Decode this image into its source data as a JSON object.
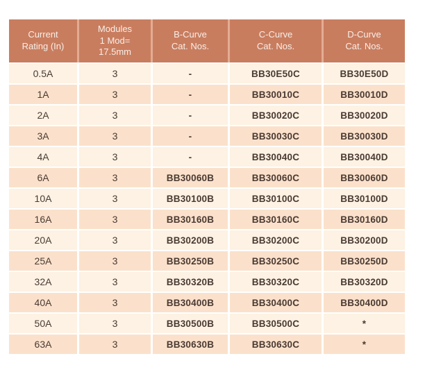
{
  "table": {
    "title": "MCB catalog numbers table",
    "columns": [
      {
        "id": "current-rating",
        "lines": [
          "Current",
          "Rating (In)"
        ]
      },
      {
        "id": "modules",
        "lines": [
          "Modules",
          "1 Mod=",
          "17.5mm"
        ]
      },
      {
        "id": "b-curve",
        "lines": [
          "B-Curve",
          "Cat. Nos."
        ]
      },
      {
        "id": "c-curve",
        "lines": [
          "C-Curve",
          "Cat. Nos."
        ]
      },
      {
        "id": "d-curve",
        "lines": [
          "D-Curve",
          "Cat. Nos."
        ]
      }
    ],
    "rows": [
      [
        "0.5A",
        "3",
        "-",
        "BB30E50C",
        "BB30E50D"
      ],
      [
        "1A",
        "3",
        "-",
        "BB30010C",
        "BB30010D"
      ],
      [
        "2A",
        "3",
        "-",
        "BB30020C",
        "BB30020D"
      ],
      [
        "3A",
        "3",
        "-",
        "BB30030C",
        "BB30030D"
      ],
      [
        "4A",
        "3",
        "-",
        "BB30040C",
        "BB30040D"
      ],
      [
        "6A",
        "3",
        "BB30060B",
        "BB30060C",
        "BB30060D"
      ],
      [
        "10A",
        "3",
        "BB30100B",
        "BB30100C",
        "BB30100D"
      ],
      [
        "16A",
        "3",
        "BB30160B",
        "BB30160C",
        "BB30160D"
      ],
      [
        "20A",
        "3",
        "BB30200B",
        "BB30200C",
        "BB30200D"
      ],
      [
        "25A",
        "3",
        "BB30250B",
        "BB30250C",
        "BB30250D"
      ],
      [
        "32A",
        "3",
        "BB30320B",
        "BB30320C",
        "BB30320D"
      ],
      [
        "40A",
        "3",
        "BB30400B",
        "BB30400C",
        "BB30400D"
      ],
      [
        "50A",
        "3",
        "BB30500B",
        "BB30500C",
        "*"
      ],
      [
        "63A",
        "3",
        "BB30630B",
        "BB30630C",
        "*"
      ]
    ]
  },
  "colors": {
    "header_bg": "#c97d5f",
    "header_text": "#f8eee7",
    "header_divider": "#e3ac93",
    "row_light": "#fdf2e3",
    "row_dark": "#fbe1cb",
    "body_text": "#4a3a33",
    "page_bg": "#ffffff"
  }
}
